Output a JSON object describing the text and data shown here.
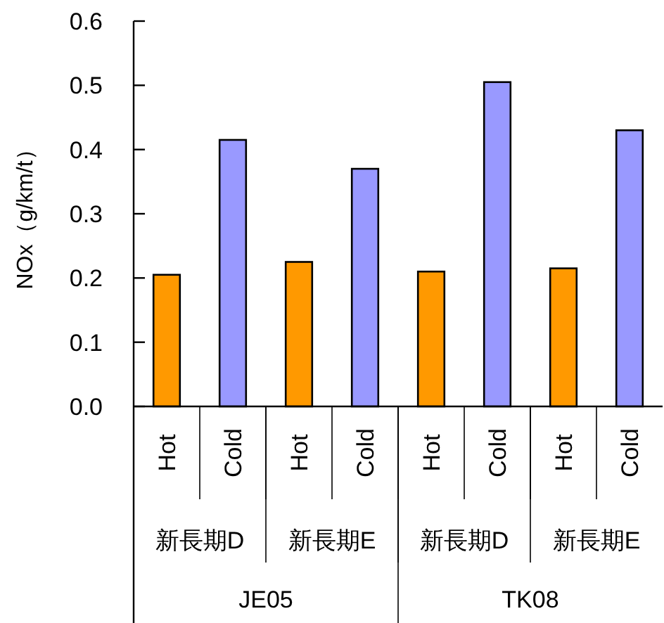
{
  "chart_data": {
    "type": "bar",
    "categories": [
      "Hot",
      "Cold",
      "Hot",
      "Cold",
      "Hot",
      "Cold",
      "Hot",
      "Cold"
    ],
    "values": [
      0.205,
      0.415,
      0.225,
      0.37,
      0.21,
      0.505,
      0.215,
      0.43
    ],
    "colors": [
      "#ff9900",
      "#9999ff",
      "#ff9900",
      "#9999ff",
      "#ff9900",
      "#9999ff",
      "#ff9900",
      "#9999ff"
    ],
    "ylabel": "NOx（g/km/t）",
    "ylim": [
      0,
      0.6
    ],
    "yticks": [
      {
        "value": 0,
        "label": "0.0"
      },
      {
        "value": 0.1,
        "label": "0.1"
      },
      {
        "value": 0.2,
        "label": "0.2"
      },
      {
        "value": 0.3,
        "label": "0.3"
      },
      {
        "value": 0.4,
        "label": "0.4"
      },
      {
        "value": 0.5,
        "label": "0.5"
      },
      {
        "value": 0.6,
        "label": "0.6"
      }
    ],
    "annotations": [
      "新長期D",
      "新長期E",
      "新長期D",
      "新長期E",
      "JE05",
      "TK08"
    ],
    "grid": false
  }
}
